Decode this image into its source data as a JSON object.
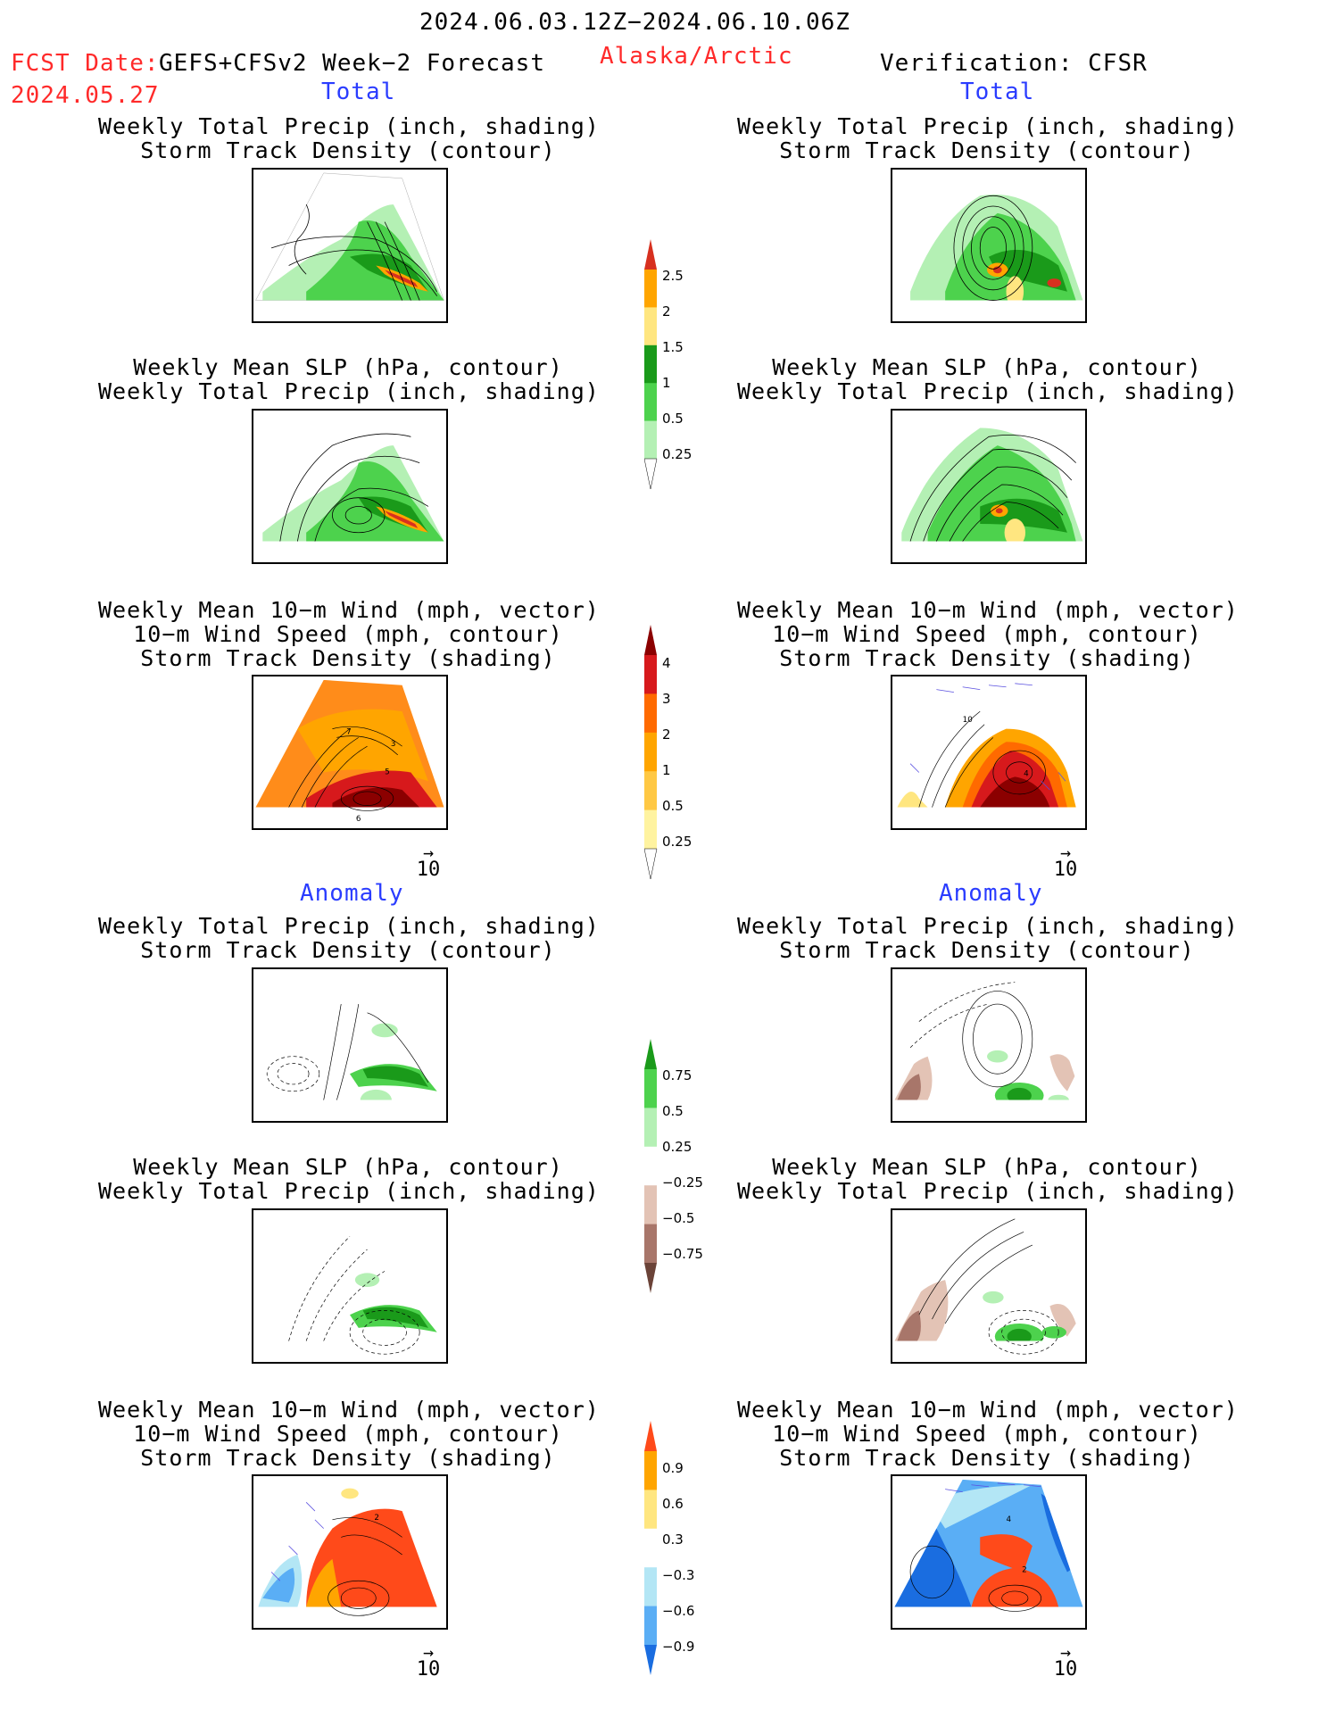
{
  "header": {
    "period": "2024.06.03.12Z−2024.06.10.06Z",
    "fcst_label": "FCST Date:",
    "model": "GEFS+CFSv2 Week−2 Forecast",
    "fcst_date": "2024.05.27",
    "region": "Alaska/Arctic",
    "verification": "Verification: CFSR"
  },
  "sections": {
    "total": "Total",
    "anomaly": "Anomaly"
  },
  "titles": {
    "precip_track_1": "Weekly Total Precip (inch, shading)",
    "precip_track_2": "Storm Track Density (contour)",
    "slp_precip_1": "Weekly Mean SLP (hPa, contour)",
    "slp_precip_2": "Weekly Total Precip (inch, shading)",
    "wind_1": "Weekly Mean 10−m Wind (mph, vector)",
    "wind_2": "10−m Wind Speed (mph, contour)",
    "wind_3": "Storm Track Density (shading)"
  },
  "vector_ref": "10",
  "colorbars": {
    "precip_total": {
      "labels": [
        "2.5",
        "2",
        "1.5",
        "1",
        "0.5",
        "0.25"
      ],
      "colors": [
        "#d7301f",
        "#ffa500",
        "#ffe680",
        "#1a9a1a",
        "#4dd24d",
        "#b4f0b4"
      ]
    },
    "track_total": {
      "labels": [
        "4",
        "3",
        "2",
        "1",
        "0.5",
        "0.25"
      ],
      "colors": [
        "#8b0000",
        "#d7191c",
        "#ff6a00",
        "#ffa500",
        "#ffc844",
        "#fff3a0"
      ]
    },
    "precip_anom": {
      "labels": [
        "0.75",
        "0.5",
        "0.25",
        "−0.25",
        "−0.5",
        "−0.75"
      ],
      "colors": [
        "#1a9a1a",
        "#4dd24d",
        "#b4f0b4",
        "#ffffff",
        "#e3c3b5",
        "#a8766a",
        "#6b4338"
      ]
    },
    "track_anom": {
      "labels": [
        "0.9",
        "0.6",
        "0.3",
        "−0.3",
        "−0.6",
        "−0.9"
      ],
      "colors": [
        "#ff4a1a",
        "#ffa500",
        "#ffe680",
        "#ffffff",
        "#b3e6f5",
        "#5aaef5",
        "#1a6de0"
      ]
    }
  },
  "contour_labels": {
    "track_total_fcst": [
      "7",
      "3",
      "5",
      "6"
    ],
    "track_total_verif": [
      "10",
      "4"
    ],
    "track_anom_fcst": [
      "2"
    ],
    "track_anom_verif": [
      "4",
      "2"
    ]
  }
}
